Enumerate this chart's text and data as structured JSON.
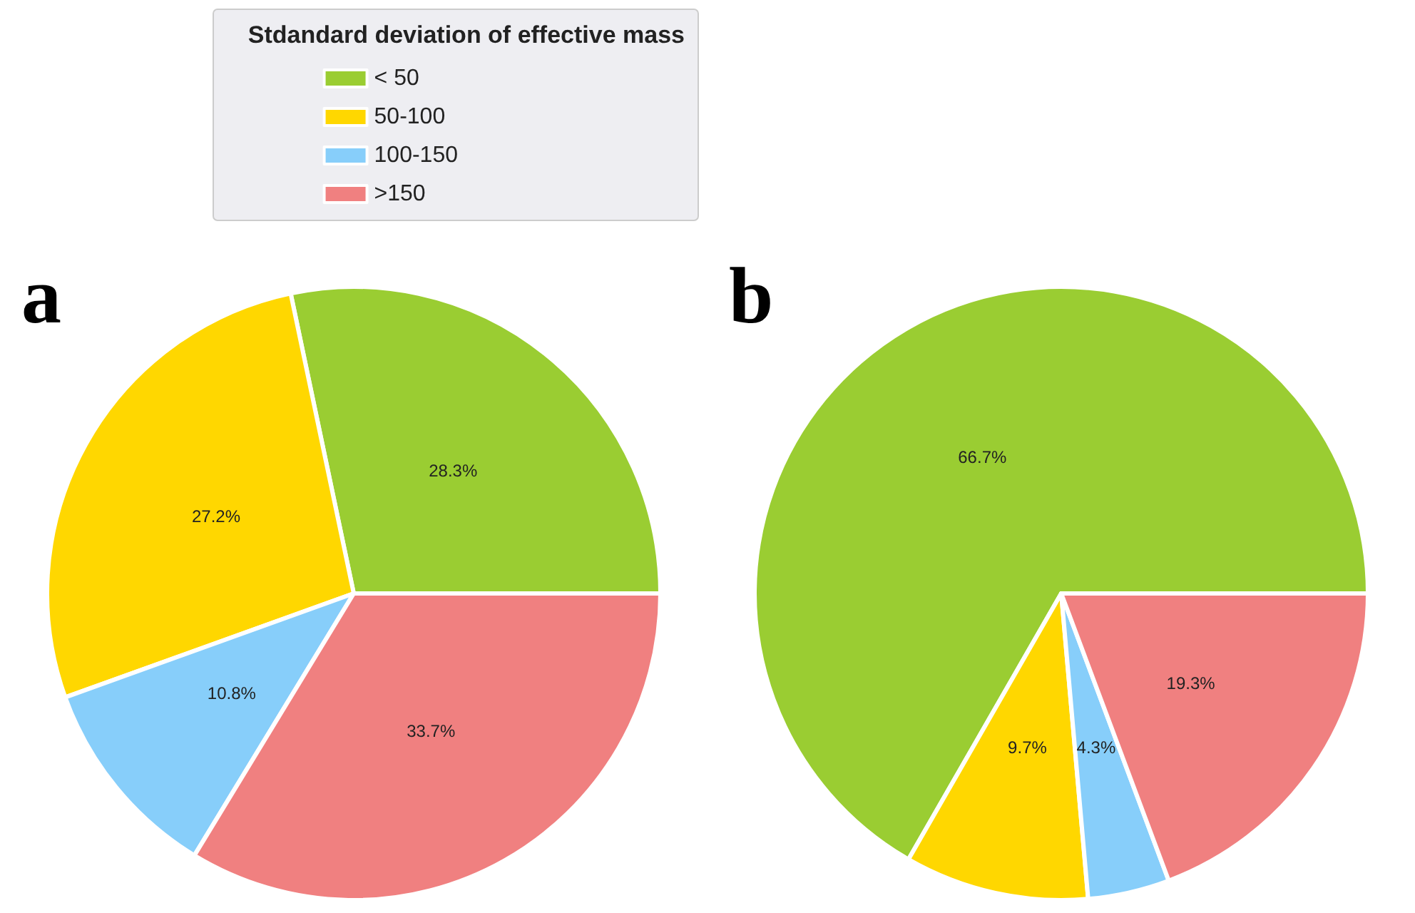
{
  "chart_data": [
    {
      "type": "pie",
      "title": "a",
      "legend_title": "Stdandard deviation of effective mass",
      "legend": "top right",
      "categories": [
        "< 50",
        "50-100",
        "100-150",
        ">150"
      ],
      "values": [
        28.3,
        27.2,
        10.8,
        33.7
      ],
      "value_labels": [
        "28.3%",
        "27.2%",
        "10.8%",
        "33.7%"
      ],
      "colors": [
        "#9acd32",
        "#ffd700",
        "#87cefa",
        "#f08080"
      ]
    },
    {
      "type": "pie",
      "title": "b",
      "categories": [
        null,
        null,
        null,
        null
      ],
      "values": [
        66.7,
        9.7,
        4.3,
        19.3
      ],
      "value_labels": [
        "66.7%",
        "9.7%",
        "4.3%",
        "19.3%"
      ],
      "colors": [
        "#9acd32",
        "#ffd700",
        "#87cefa",
        "#f08080"
      ]
    }
  ]
}
